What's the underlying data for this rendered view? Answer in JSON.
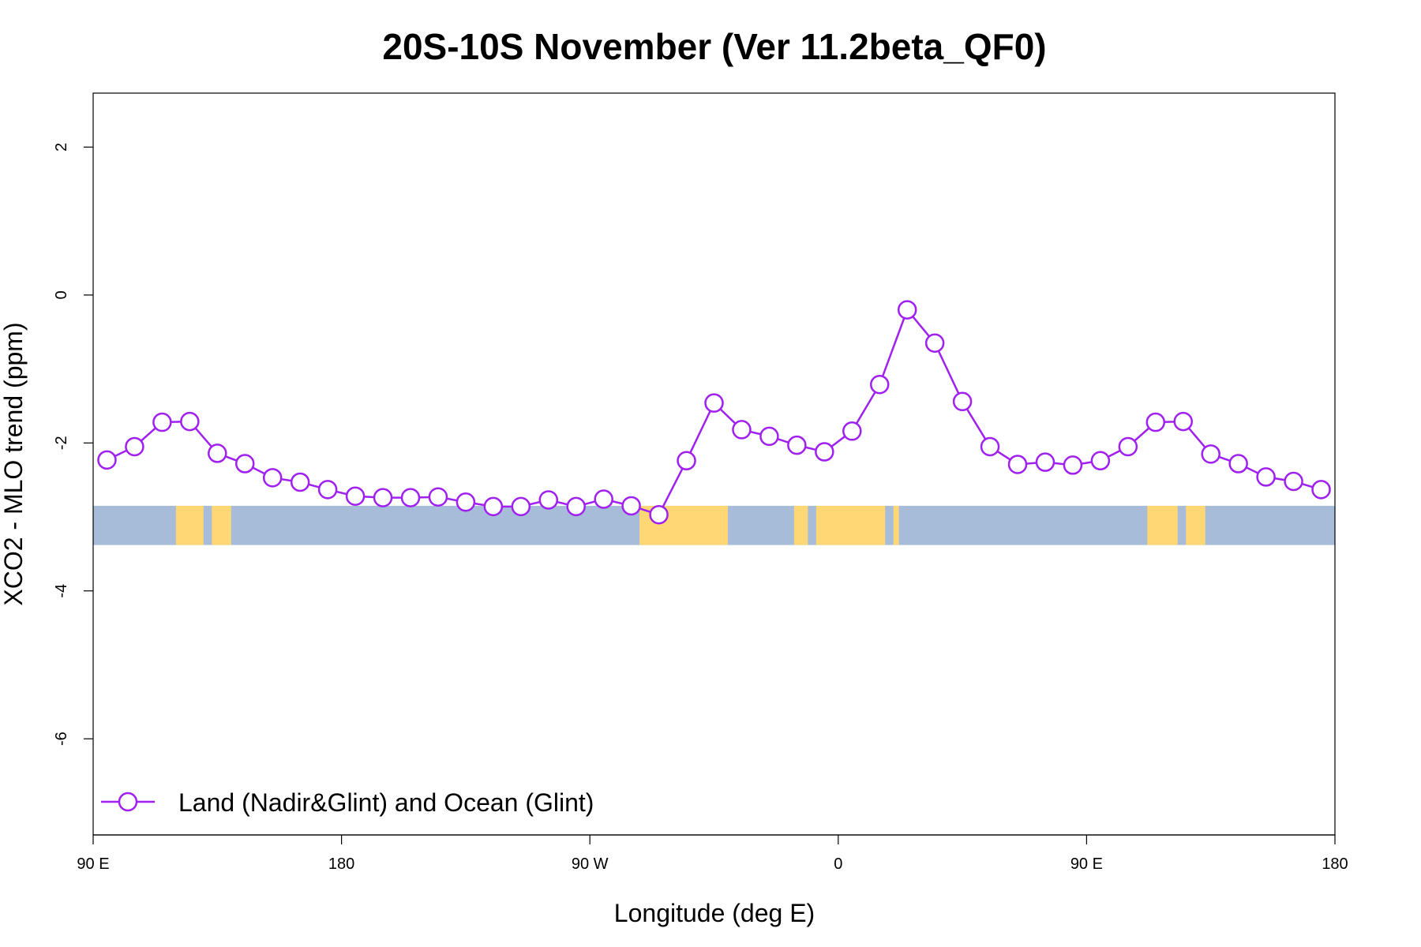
{
  "chart_data": {
    "type": "line",
    "title": "20S-10S November (Ver 11.2beta_QF0)",
    "xlabel": "Longitude (deg E)",
    "ylabel": "XCO2 - MLO trend (ppm)",
    "xlim": [
      90,
      540
    ],
    "ylim": [
      -7.3,
      2.73
    ],
    "x_ticks": [
      {
        "value": 90,
        "label": "90 E"
      },
      {
        "value": 180,
        "label": "180"
      },
      {
        "value": 270,
        "label": "90 W"
      },
      {
        "value": 360,
        "label": "0"
      },
      {
        "value": 450,
        "label": "90 E"
      },
      {
        "value": 540,
        "label": "180"
      }
    ],
    "y_ticks": [
      {
        "value": 2,
        "label": "2"
      },
      {
        "value": 0,
        "label": "0"
      },
      {
        "value": -2,
        "label": "-2"
      },
      {
        "value": -4,
        "label": "-4"
      },
      {
        "value": -6,
        "label": "-6"
      }
    ],
    "grid": false,
    "legend": {
      "position": "bottom-left",
      "entries": [
        {
          "label": "Land (Nadir&Glint) and Ocean (Glint)",
          "color": "#a020f0",
          "marker": "open-circle"
        }
      ]
    },
    "series": [
      {
        "name": "Land (Nadir&Glint) and Ocean (Glint)",
        "color": "#a020f0",
        "x": [
          95,
          105,
          115,
          125,
          135,
          145,
          155,
          165,
          175,
          185,
          195,
          205,
          215,
          225,
          235,
          245,
          255,
          265,
          275,
          285,
          295,
          305,
          315,
          325,
          335,
          345,
          355,
          365,
          375,
          385,
          395,
          405,
          415,
          425,
          435,
          445,
          455,
          465,
          475,
          485,
          495,
          505,
          515,
          525,
          535
        ],
        "y": [
          -2.23,
          -2.05,
          -1.72,
          -1.71,
          -2.14,
          -2.28,
          -2.47,
          -2.53,
          -2.63,
          -2.72,
          -2.74,
          -2.74,
          -2.73,
          -2.8,
          -2.86,
          -2.86,
          -2.77,
          -2.86,
          -2.76,
          -2.85,
          -2.97,
          -2.24,
          -1.46,
          -1.82,
          -1.91,
          -2.03,
          -2.12,
          -1.84,
          -1.21,
          -0.2,
          -0.65,
          -1.44,
          -2.05,
          -2.29,
          -2.26,
          -2.3,
          -2.24,
          -2.05,
          -1.72,
          -1.71,
          -2.15,
          -2.28,
          -2.46,
          -2.52,
          -2.63
        ]
      }
    ],
    "background_band": {
      "y_range": [
        -3.38,
        -2.85
      ],
      "ocean_color": "#a7bcd9",
      "land_color": "#ffd774",
      "land_segments": [
        [
          120,
          130
        ],
        [
          133,
          140
        ],
        [
          288,
          320
        ],
        [
          344,
          349
        ],
        [
          352,
          377
        ],
        [
          380,
          382
        ],
        [
          472,
          483
        ],
        [
          486,
          493
        ]
      ]
    }
  }
}
